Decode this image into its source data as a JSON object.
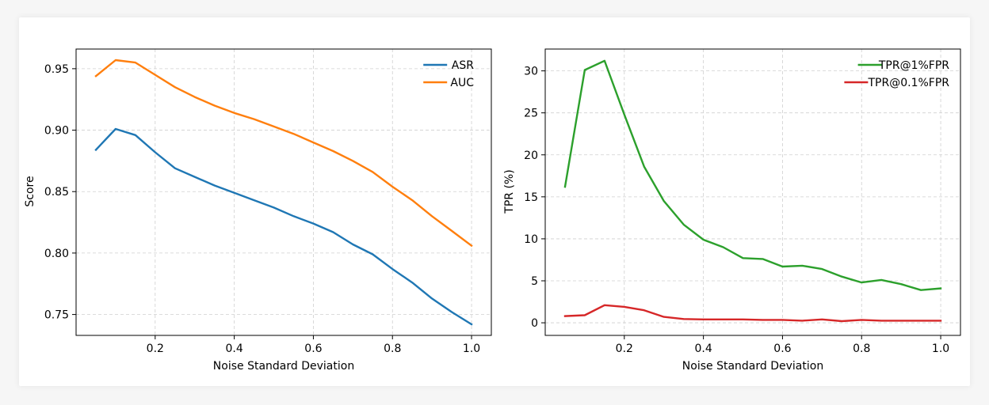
{
  "chart_data": [
    {
      "type": "line",
      "xlabel": "Noise Standard Deviation",
      "ylabel": "Score",
      "xlim": [
        0.0,
        1.05
      ],
      "ylim": [
        0.733,
        0.966
      ],
      "xticks": [
        0.2,
        0.4,
        0.6,
        0.8,
        1.0
      ],
      "xtick_labels": [
        "0.2",
        "0.4",
        "0.6",
        "0.8",
        "1.0"
      ],
      "yticks": [
        0.75,
        0.8,
        0.85,
        0.9,
        0.95
      ],
      "ytick_labels": [
        "0.75",
        "0.80",
        "0.85",
        "0.90",
        "0.95"
      ],
      "grid": true,
      "legend": "top-right",
      "x": [
        0.05,
        0.1,
        0.15,
        0.2,
        0.25,
        0.3,
        0.35,
        0.4,
        0.45,
        0.5,
        0.55,
        0.6,
        0.65,
        0.7,
        0.75,
        0.8,
        0.85,
        0.9,
        0.95,
        1.0
      ],
      "series": [
        {
          "name": "ASR",
          "color": "#1f77b4",
          "values": [
            0.884,
            0.901,
            0.896,
            0.882,
            0.869,
            0.862,
            0.855,
            0.849,
            0.843,
            0.837,
            0.83,
            0.824,
            0.817,
            0.807,
            0.799,
            0.787,
            0.776,
            0.763,
            0.752,
            0.742
          ]
        },
        {
          "name": "AUC",
          "color": "#ff7f0e",
          "values": [
            0.944,
            0.957,
            0.955,
            0.945,
            0.935,
            0.927,
            0.92,
            0.914,
            0.909,
            0.903,
            0.897,
            0.89,
            0.883,
            0.875,
            0.866,
            0.854,
            0.843,
            0.83,
            0.818,
            0.806
          ]
        }
      ]
    },
    {
      "type": "line",
      "xlabel": "Noise Standard Deviation",
      "ylabel": "TPR (%)",
      "xlim": [
        0.0,
        1.05
      ],
      "ylim": [
        -1.5,
        32.6
      ],
      "xticks": [
        0.2,
        0.4,
        0.6,
        0.8,
        1.0
      ],
      "xtick_labels": [
        "0.2",
        "0.4",
        "0.6",
        "0.8",
        "1.0"
      ],
      "yticks": [
        0,
        5,
        10,
        15,
        20,
        25,
        30
      ],
      "ytick_labels": [
        "0",
        "5",
        "10",
        "15",
        "20",
        "25",
        "30"
      ],
      "grid": true,
      "legend": "top-right",
      "x": [
        0.05,
        0.1,
        0.15,
        0.2,
        0.25,
        0.3,
        0.35,
        0.4,
        0.45,
        0.5,
        0.55,
        0.6,
        0.65,
        0.7,
        0.75,
        0.8,
        0.85,
        0.9,
        0.95,
        1.0
      ],
      "series": [
        {
          "name": "TPR@1%FPR",
          "color": "#2ca02c",
          "values": [
            16.2,
            30.1,
            31.2,
            24.8,
            18.6,
            14.5,
            11.7,
            9.9,
            9.0,
            7.7,
            7.6,
            6.7,
            6.8,
            6.4,
            5.5,
            4.8,
            5.1,
            4.6,
            3.9,
            4.1
          ]
        },
        {
          "name": "TPR@0.1%FPR",
          "color": "#d62728",
          "values": [
            0.8,
            0.9,
            2.1,
            1.9,
            1.5,
            0.7,
            0.45,
            0.4,
            0.4,
            0.4,
            0.35,
            0.35,
            0.25,
            0.4,
            0.2,
            0.35,
            0.25,
            0.25,
            0.25,
            0.25
          ]
        }
      ]
    }
  ]
}
